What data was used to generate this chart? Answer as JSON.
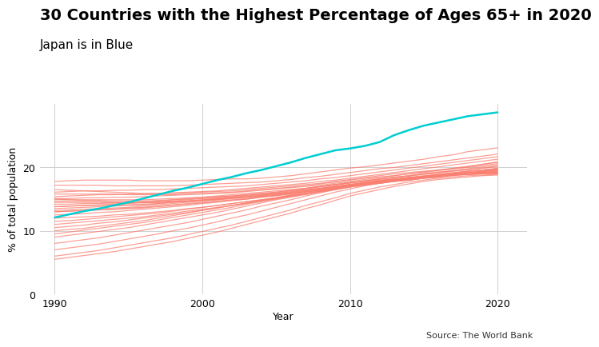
{
  "title": "30 Countries with the Highest Percentage of Ages 65+ in 2020",
  "subtitle": "Japan is in Blue",
  "xlabel": "Year",
  "ylabel": "% of total population",
  "source": "Source: The World Bank",
  "years": [
    1990,
    1991,
    1992,
    1993,
    1994,
    1995,
    1996,
    1997,
    1998,
    1999,
    2000,
    2001,
    2002,
    2003,
    2004,
    2005,
    2006,
    2007,
    2008,
    2009,
    2010,
    2011,
    2012,
    2013,
    2014,
    2015,
    2016,
    2017,
    2018,
    2019,
    2020
  ],
  "japan": [
    12.1,
    12.6,
    13.1,
    13.5,
    14.0,
    14.5,
    15.1,
    15.7,
    16.3,
    16.8,
    17.4,
    18.0,
    18.5,
    19.1,
    19.6,
    20.2,
    20.8,
    21.5,
    22.1,
    22.7,
    23.0,
    23.4,
    24.0,
    25.1,
    25.9,
    26.6,
    27.1,
    27.6,
    28.1,
    28.4,
    28.7
  ],
  "other_countries": [
    [
      17.8,
      17.9,
      18.0,
      18.0,
      18.0,
      18.0,
      17.9,
      17.9,
      17.9,
      17.9,
      18.0,
      18.1,
      18.2,
      18.2,
      18.3,
      18.5,
      18.7,
      19.0,
      19.3,
      19.6,
      19.9,
      20.1,
      20.4,
      20.7,
      21.0,
      21.3,
      21.7,
      22.0,
      22.5,
      22.8,
      23.1
    ],
    [
      17.2,
      17.2,
      17.2,
      17.2,
      17.1,
      17.1,
      17.1,
      17.1,
      17.1,
      17.2,
      17.3,
      17.4,
      17.5,
      17.6,
      17.7,
      17.9,
      18.1,
      18.4,
      18.6,
      18.9,
      19.2,
      19.5,
      19.8,
      20.0,
      20.3,
      20.6,
      20.9,
      21.2,
      21.5,
      21.8,
      22.1
    ],
    [
      16.1,
      16.2,
      16.3,
      16.3,
      16.4,
      16.4,
      16.5,
      16.5,
      16.6,
      16.7,
      16.8,
      16.9,
      17.0,
      17.1,
      17.3,
      17.5,
      17.7,
      17.9,
      18.2,
      18.4,
      18.7,
      19.0,
      19.3,
      19.6,
      19.9,
      20.2,
      20.5,
      20.8,
      21.1,
      21.4,
      21.7
    ],
    [
      15.4,
      15.5,
      15.6,
      15.7,
      15.7,
      15.8,
      15.8,
      15.9,
      16.0,
      16.1,
      16.2,
      16.3,
      16.5,
      16.7,
      16.9,
      17.1,
      17.3,
      17.5,
      17.8,
      18.0,
      18.3,
      18.6,
      18.9,
      19.2,
      19.5,
      19.8,
      20.1,
      20.4,
      20.7,
      21.0,
      21.3
    ],
    [
      15.8,
      15.8,
      15.8,
      15.8,
      15.8,
      15.7,
      15.7,
      15.7,
      15.7,
      15.8,
      15.9,
      16.0,
      16.1,
      16.3,
      16.5,
      16.7,
      16.9,
      17.1,
      17.4,
      17.7,
      18.0,
      18.3,
      18.5,
      18.7,
      19.0,
      19.2,
      19.5,
      19.8,
      20.1,
      20.5,
      20.9
    ],
    [
      16.5,
      16.4,
      16.3,
      16.2,
      16.1,
      16.0,
      15.9,
      15.9,
      15.9,
      16.0,
      16.1,
      16.2,
      16.3,
      16.5,
      16.7,
      16.9,
      17.1,
      17.3,
      17.5,
      17.8,
      18.1,
      18.4,
      18.7,
      19.0,
      19.2,
      19.4,
      19.6,
      19.8,
      20.0,
      20.3,
      20.6
    ],
    [
      15.1,
      15.1,
      15.2,
      15.2,
      15.3,
      15.3,
      15.4,
      15.5,
      15.6,
      15.7,
      15.8,
      15.9,
      16.0,
      16.2,
      16.4,
      16.6,
      16.8,
      17.0,
      17.2,
      17.5,
      17.8,
      18.1,
      18.4,
      18.7,
      19.0,
      19.3,
      19.6,
      19.9,
      20.2,
      20.5,
      20.8
    ],
    [
      14.9,
      14.9,
      14.9,
      14.9,
      14.9,
      14.9,
      14.9,
      15.0,
      15.1,
      15.2,
      15.3,
      15.5,
      15.7,
      15.9,
      16.1,
      16.3,
      16.5,
      16.7,
      17.0,
      17.3,
      17.6,
      17.9,
      18.2,
      18.5,
      18.7,
      19.0,
      19.3,
      19.5,
      19.8,
      20.1,
      20.4
    ],
    [
      15.0,
      14.9,
      14.8,
      14.8,
      14.7,
      14.7,
      14.7,
      14.8,
      14.9,
      15.0,
      15.1,
      15.2,
      15.4,
      15.6,
      15.8,
      16.0,
      16.3,
      16.6,
      16.9,
      17.2,
      17.5,
      17.8,
      18.1,
      18.4,
      18.6,
      18.9,
      19.1,
      19.4,
      19.6,
      19.9,
      20.2
    ],
    [
      14.2,
      14.2,
      14.3,
      14.3,
      14.4,
      14.4,
      14.5,
      14.6,
      14.7,
      14.9,
      15.1,
      15.3,
      15.5,
      15.7,
      15.9,
      16.1,
      16.4,
      16.7,
      17.0,
      17.3,
      17.6,
      17.9,
      18.2,
      18.4,
      18.7,
      19.0,
      19.2,
      19.5,
      19.7,
      19.9,
      20.1
    ],
    [
      14.5,
      14.5,
      14.5,
      14.5,
      14.4,
      14.4,
      14.4,
      14.5,
      14.6,
      14.7,
      14.9,
      15.0,
      15.2,
      15.4,
      15.6,
      15.8,
      16.1,
      16.4,
      16.7,
      17.0,
      17.3,
      17.6,
      17.9,
      18.2,
      18.4,
      18.7,
      18.9,
      19.2,
      19.4,
      19.6,
      19.9
    ],
    [
      13.8,
      13.9,
      14.0,
      14.0,
      14.1,
      14.1,
      14.2,
      14.3,
      14.5,
      14.6,
      14.8,
      15.0,
      15.2,
      15.4,
      15.6,
      15.8,
      16.1,
      16.4,
      16.7,
      17.0,
      17.3,
      17.6,
      17.9,
      18.1,
      18.4,
      18.6,
      18.9,
      19.1,
      19.4,
      19.6,
      19.8
    ],
    [
      14.6,
      14.6,
      14.6,
      14.6,
      14.5,
      14.5,
      14.5,
      14.5,
      14.6,
      14.7,
      14.8,
      14.9,
      15.1,
      15.3,
      15.5,
      15.7,
      15.9,
      16.2,
      16.4,
      16.7,
      17.0,
      17.3,
      17.5,
      17.8,
      18.0,
      18.3,
      18.5,
      18.8,
      19.0,
      19.3,
      19.6
    ],
    [
      13.5,
      13.6,
      13.7,
      13.8,
      13.9,
      14.0,
      14.1,
      14.3,
      14.5,
      14.7,
      14.9,
      15.1,
      15.3,
      15.5,
      15.7,
      15.9,
      16.2,
      16.5,
      16.7,
      17.0,
      17.3,
      17.5,
      17.8,
      18.0,
      18.3,
      18.5,
      18.7,
      19.0,
      19.2,
      19.4,
      19.6
    ],
    [
      13.0,
      13.1,
      13.2,
      13.3,
      13.4,
      13.6,
      13.7,
      13.9,
      14.1,
      14.3,
      14.5,
      14.7,
      14.9,
      15.1,
      15.4,
      15.6,
      15.9,
      16.2,
      16.5,
      16.8,
      17.1,
      17.3,
      17.6,
      17.9,
      18.1,
      18.4,
      18.6,
      18.9,
      19.1,
      19.3,
      19.5
    ],
    [
      13.2,
      13.3,
      13.4,
      13.5,
      13.6,
      13.7,
      13.9,
      14.1,
      14.3,
      14.5,
      14.7,
      14.9,
      15.1,
      15.3,
      15.5,
      15.8,
      16.0,
      16.3,
      16.6,
      16.9,
      17.2,
      17.4,
      17.7,
      17.9,
      18.2,
      18.4,
      18.6,
      18.9,
      19.1,
      19.3,
      19.4
    ],
    [
      12.5,
      12.6,
      12.7,
      12.9,
      13.0,
      13.2,
      13.4,
      13.6,
      13.8,
      14.0,
      14.3,
      14.5,
      14.8,
      15.0,
      15.3,
      15.6,
      15.9,
      16.2,
      16.5,
      16.8,
      17.1,
      17.4,
      17.7,
      17.9,
      18.2,
      18.4,
      18.7,
      18.9,
      19.1,
      19.3,
      19.4
    ],
    [
      12.0,
      12.1,
      12.2,
      12.3,
      12.5,
      12.6,
      12.8,
      13.0,
      13.2,
      13.5,
      13.7,
      14.0,
      14.3,
      14.6,
      14.9,
      15.2,
      15.5,
      15.9,
      16.2,
      16.5,
      16.9,
      17.2,
      17.5,
      17.8,
      18.0,
      18.3,
      18.5,
      18.8,
      19.0,
      19.2,
      19.3
    ],
    [
      11.5,
      11.6,
      11.8,
      12.0,
      12.2,
      12.4,
      12.6,
      12.8,
      13.1,
      13.4,
      13.7,
      14.0,
      14.3,
      14.6,
      14.9,
      15.2,
      15.6,
      15.9,
      16.3,
      16.6,
      17.0,
      17.3,
      17.6,
      17.9,
      18.1,
      18.4,
      18.6,
      18.8,
      19.0,
      19.1,
      19.2
    ],
    [
      11.0,
      11.2,
      11.4,
      11.6,
      11.8,
      12.0,
      12.2,
      12.5,
      12.8,
      13.1,
      13.4,
      13.7,
      14.0,
      14.3,
      14.7,
      15.0,
      15.4,
      15.7,
      16.1,
      16.5,
      16.9,
      17.2,
      17.5,
      17.8,
      18.0,
      18.3,
      18.5,
      18.7,
      18.9,
      19.0,
      19.2
    ],
    [
      10.5,
      10.7,
      10.9,
      11.2,
      11.4,
      11.7,
      12.0,
      12.3,
      12.6,
      12.9,
      13.3,
      13.6,
      14.0,
      14.4,
      14.8,
      15.1,
      15.5,
      15.9,
      16.2,
      16.6,
      17.0,
      17.3,
      17.6,
      17.9,
      18.1,
      18.4,
      18.6,
      18.8,
      19.0,
      19.1,
      19.2
    ],
    [
      9.5,
      9.8,
      10.1,
      10.4,
      10.7,
      11.0,
      11.3,
      11.7,
      12.1,
      12.5,
      12.9,
      13.3,
      13.7,
      14.2,
      14.6,
      15.1,
      15.5,
      15.9,
      16.3,
      16.8,
      17.2,
      17.5,
      17.8,
      18.0,
      18.3,
      18.5,
      18.7,
      18.9,
      19.0,
      19.1,
      19.2
    ],
    [
      9.0,
      9.3,
      9.6,
      9.9,
      10.2,
      10.5,
      10.9,
      11.3,
      11.7,
      12.1,
      12.5,
      12.9,
      13.4,
      13.9,
      14.4,
      14.9,
      15.3,
      15.8,
      16.3,
      16.7,
      17.2,
      17.5,
      17.8,
      18.1,
      18.3,
      18.5,
      18.7,
      18.9,
      19.0,
      19.1,
      19.1
    ],
    [
      8.0,
      8.3,
      8.6,
      8.9,
      9.3,
      9.7,
      10.1,
      10.5,
      10.9,
      11.3,
      11.8,
      12.3,
      12.8,
      13.3,
      13.9,
      14.4,
      14.9,
      15.5,
      16.0,
      16.5,
      17.0,
      17.4,
      17.7,
      18.0,
      18.2,
      18.4,
      18.6,
      18.8,
      18.9,
      19.0,
      19.1
    ],
    [
      7.0,
      7.3,
      7.6,
      7.9,
      8.3,
      8.7,
      9.1,
      9.5,
      10.0,
      10.4,
      10.9,
      11.4,
      12.0,
      12.5,
      13.1,
      13.7,
      14.3,
      14.9,
      15.5,
      16.1,
      16.6,
      17.1,
      17.5,
      17.9,
      18.2,
      18.4,
      18.6,
      18.8,
      18.9,
      19.0,
      19.0
    ],
    [
      6.0,
      6.3,
      6.6,
      6.9,
      7.3,
      7.7,
      8.1,
      8.5,
      8.9,
      9.4,
      9.9,
      10.4,
      10.9,
      11.5,
      12.1,
      12.7,
      13.3,
      14.0,
      14.6,
      15.2,
      15.9,
      16.4,
      16.9,
      17.3,
      17.7,
      18.0,
      18.3,
      18.5,
      18.7,
      18.8,
      18.9
    ],
    [
      5.5,
      5.8,
      6.1,
      6.4,
      6.7,
      7.1,
      7.5,
      7.9,
      8.3,
      8.8,
      9.3,
      9.8,
      10.4,
      11.0,
      11.6,
      12.2,
      12.8,
      13.5,
      14.1,
      14.8,
      15.5,
      16.0,
      16.5,
      17.0,
      17.4,
      17.8,
      18.1,
      18.3,
      18.5,
      18.7,
      18.8
    ],
    [
      13.8,
      13.9,
      14.0,
      14.1,
      14.2,
      14.3,
      14.5,
      14.7,
      14.9,
      15.1,
      15.3,
      15.4,
      15.5,
      15.7,
      15.9,
      16.1,
      16.4,
      16.7,
      17.0,
      17.3,
      17.6,
      17.8,
      18.0,
      18.2,
      18.4,
      18.6,
      18.8,
      19.0,
      19.2,
      19.4,
      19.7
    ],
    [
      13.0,
      13.1,
      13.2,
      13.3,
      13.4,
      13.5,
      13.6,
      13.8,
      14.0,
      14.2,
      14.4,
      14.6,
      14.8,
      15.0,
      15.3,
      15.5,
      15.8,
      16.1,
      16.4,
      16.7,
      17.0,
      17.3,
      17.6,
      17.9,
      18.2,
      18.5,
      18.8,
      19.1,
      19.4,
      19.6,
      19.8
    ],
    [
      10.0,
      10.2,
      10.4,
      10.7,
      11.0,
      11.3,
      11.6,
      12.0,
      12.4,
      12.8,
      13.2,
      13.6,
      14.0,
      14.4,
      14.8,
      15.2,
      15.7,
      16.1,
      16.5,
      16.9,
      17.3,
      17.6,
      17.9,
      18.1,
      18.4,
      18.6,
      18.8,
      19.0,
      19.2,
      19.4,
      19.7
    ]
  ],
  "line_color_other": "#FA8072",
  "line_color_japan": "#00CED1",
  "bg_color": "#ffffff",
  "plot_bg_color": "#ffffff",
  "grid_color": "#d0d0d0",
  "title_fontsize": 14,
  "subtitle_fontsize": 11,
  "label_fontsize": 9,
  "tick_fontsize": 9,
  "source_fontsize": 8,
  "ylim": [
    0,
    30
  ],
  "xlim": [
    1989,
    2022
  ],
  "yticks": [
    0,
    10,
    20
  ],
  "xticks": [
    1990,
    2000,
    2010,
    2020
  ]
}
